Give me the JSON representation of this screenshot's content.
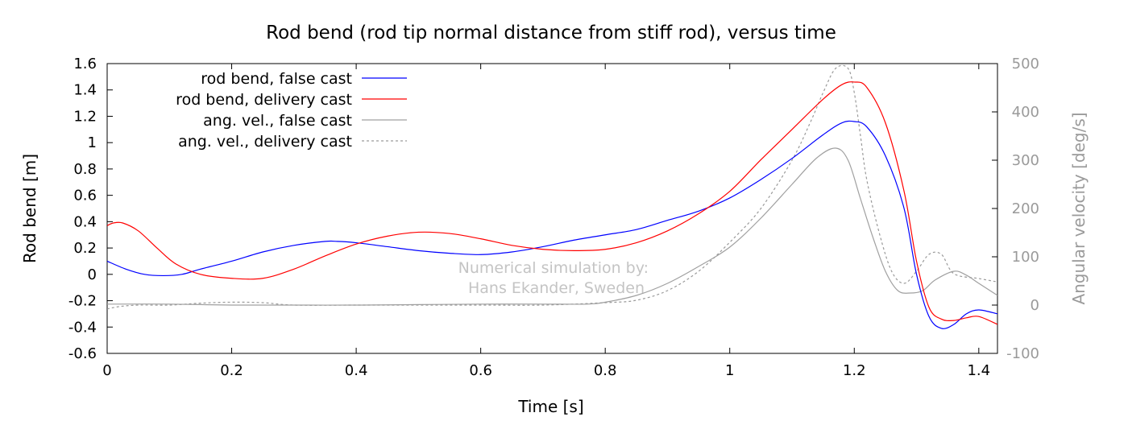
{
  "chart_data": {
    "type": "line",
    "title": "Rod bend (rod tip normal distance from stiff rod), versus time",
    "xlabel": "Time [s]",
    "ylabel": "Rod bend [m]",
    "y2label": "Angular velocity [deg/s]",
    "xlim": [
      0,
      1.43
    ],
    "ylim": [
      -0.6,
      1.6
    ],
    "y2lim": [
      -100,
      500
    ],
    "xticks": [
      "0",
      "0.2",
      "0.4",
      "0.6",
      "0.8",
      "1",
      "1.2",
      "1.4"
    ],
    "yticks": [
      "-0.6",
      "-0.4",
      "-0.2",
      "0",
      "0.2",
      "0.4",
      "0.6",
      "0.8",
      "1",
      "1.2",
      "1.4",
      "1.6"
    ],
    "y2ticks": [
      "-100",
      "0",
      "100",
      "200",
      "300",
      "400",
      "500"
    ],
    "legend_position": "top-left",
    "grid": false,
    "annotation": [
      "Numerical simulation by:",
      "Hans Ekander, Sweden"
    ],
    "series": [
      {
        "name": "rod bend, false cast",
        "axis": "left",
        "color": "#0000ff",
        "dash": "solid",
        "x": [
          0,
          0.03,
          0.06,
          0.09,
          0.12,
          0.15,
          0.2,
          0.25,
          0.3,
          0.35,
          0.37,
          0.4,
          0.45,
          0.5,
          0.55,
          0.6,
          0.65,
          0.7,
          0.75,
          0.8,
          0.85,
          0.9,
          0.95,
          1.0,
          1.05,
          1.1,
          1.15,
          1.18,
          1.2,
          1.22,
          1.25,
          1.28,
          1.3,
          1.32,
          1.34,
          1.36,
          1.38,
          1.4,
          1.43
        ],
        "y": [
          0.1,
          0.04,
          0.0,
          -0.01,
          0.0,
          0.04,
          0.1,
          0.17,
          0.22,
          0.25,
          0.25,
          0.24,
          0.21,
          0.18,
          0.16,
          0.15,
          0.17,
          0.21,
          0.26,
          0.3,
          0.34,
          0.41,
          0.48,
          0.58,
          0.72,
          0.88,
          1.06,
          1.15,
          1.16,
          1.12,
          0.9,
          0.5,
          0.0,
          -0.32,
          -0.41,
          -0.38,
          -0.3,
          -0.27,
          -0.3
        ]
      },
      {
        "name": "rod bend, delivery cast",
        "axis": "left",
        "color": "#ff0000",
        "dash": "solid",
        "x": [
          0,
          0.01,
          0.025,
          0.05,
          0.08,
          0.11,
          0.15,
          0.2,
          0.25,
          0.3,
          0.35,
          0.4,
          0.45,
          0.5,
          0.55,
          0.6,
          0.65,
          0.7,
          0.75,
          0.8,
          0.85,
          0.9,
          0.95,
          1.0,
          1.05,
          1.1,
          1.15,
          1.18,
          1.2,
          1.22,
          1.25,
          1.28,
          1.3,
          1.32,
          1.34,
          1.36,
          1.38,
          1.4,
          1.43
        ],
        "y": [
          0.37,
          0.39,
          0.39,
          0.33,
          0.2,
          0.08,
          0.0,
          -0.03,
          -0.03,
          0.04,
          0.14,
          0.23,
          0.29,
          0.32,
          0.31,
          0.27,
          0.22,
          0.19,
          0.18,
          0.19,
          0.24,
          0.33,
          0.46,
          0.63,
          0.87,
          1.1,
          1.33,
          1.44,
          1.46,
          1.42,
          1.15,
          0.63,
          0.1,
          -0.25,
          -0.34,
          -0.35,
          -0.33,
          -0.32,
          -0.38
        ]
      },
      {
        "name": "ang. vel., false cast",
        "axis": "right",
        "color": "#a0a0a0",
        "dash": "solid",
        "x": [
          0,
          0.1,
          0.2,
          0.3,
          0.4,
          0.5,
          0.6,
          0.7,
          0.77,
          0.8,
          0.85,
          0.9,
          0.95,
          1.0,
          1.05,
          1.1,
          1.14,
          1.17,
          1.19,
          1.21,
          1.23,
          1.25,
          1.27,
          1.29,
          1.31,
          1.33,
          1.36,
          1.38,
          1.4,
          1.43
        ],
        "y": [
          2,
          2,
          0,
          0,
          0,
          1,
          2,
          2,
          2,
          6,
          20,
          45,
          80,
          120,
          180,
          250,
          305,
          325,
          300,
          220,
          140,
          70,
          30,
          25,
          30,
          52,
          70,
          62,
          45,
          20
        ]
      },
      {
        "name": "ang. vel., delivery cast",
        "axis": "right",
        "color": "#9a9a9a",
        "dash": "dashed",
        "x": [
          0,
          0.02,
          0.05,
          0.1,
          0.15,
          0.2,
          0.25,
          0.3,
          0.4,
          0.5,
          0.6,
          0.7,
          0.8,
          0.85,
          0.9,
          0.95,
          1.0,
          1.05,
          1.1,
          1.13,
          1.15,
          1.17,
          1.19,
          1.2,
          1.21,
          1.22,
          1.24,
          1.26,
          1.28,
          1.3,
          1.32,
          1.34,
          1.36,
          1.4,
          1.43
        ],
        "y": [
          -8,
          -3,
          0,
          0,
          4,
          6,
          5,
          0,
          0,
          0,
          0,
          0,
          5,
          10,
          30,
          70,
          130,
          200,
          300,
          380,
          440,
          490,
          490,
          440,
          350,
          260,
          150,
          70,
          45,
          70,
          105,
          105,
          65,
          55,
          48
        ]
      }
    ]
  }
}
